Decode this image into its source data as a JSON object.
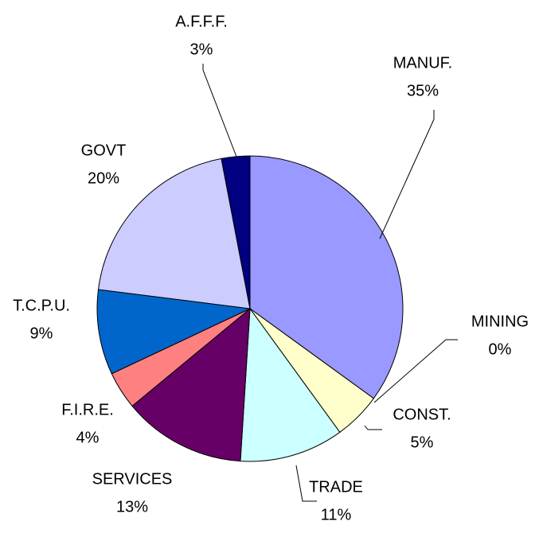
{
  "chart_data": {
    "type": "pie",
    "categories": [
      "MANUF.",
      "MINING",
      "CONST.",
      "TRADE",
      "SERVICES",
      "F.I.R.E.",
      "T.C.P.U.",
      "GOVT",
      "A.F.F.F."
    ],
    "values": [
      35,
      0,
      5,
      11,
      13,
      4,
      9,
      20,
      3
    ],
    "value_labels": [
      "35%",
      "0%",
      "5%",
      "11%",
      "13%",
      "4%",
      "9%",
      "20%",
      "3%"
    ],
    "colors": [
      "#9999ff",
      "#993366",
      "#ffffcc",
      "#ccffff",
      "#660066",
      "#ff8080",
      "#0066cc",
      "#ccccff",
      "#000080"
    ]
  }
}
